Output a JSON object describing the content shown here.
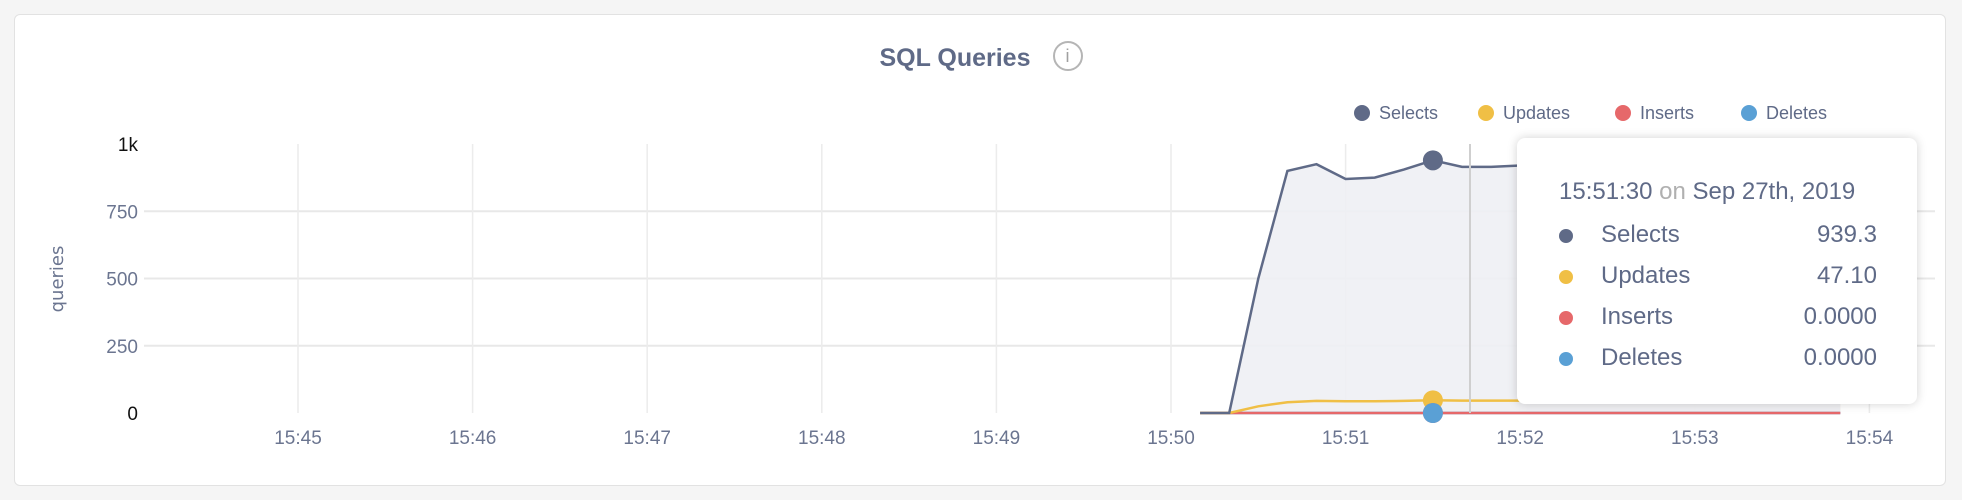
{
  "chart_data": {
    "type": "area",
    "title": "SQL Queries",
    "ylabel": "queries",
    "ylim": [
      0,
      1000
    ],
    "yticks": [
      "0",
      "250",
      "500",
      "750",
      "1k"
    ],
    "ytick_values": [
      0,
      250,
      500,
      750,
      1000
    ],
    "xlim": [
      "15:44:00",
      "15:54:00"
    ],
    "xticks": [
      "15:45",
      "15:46",
      "15:47",
      "15:48",
      "15:49",
      "15:50",
      "15:51",
      "15:52",
      "15:53",
      "15:54"
    ],
    "grid": true,
    "legend_position": "top-right",
    "x": [
      "15:50:10",
      "15:50:20",
      "15:50:30",
      "15:50:40",
      "15:50:50",
      "15:51:00",
      "15:51:10",
      "15:51:20",
      "15:51:30",
      "15:51:40",
      "15:51:50",
      "15:52:00",
      "15:52:10",
      "15:52:20",
      "15:52:30",
      "15:52:40",
      "15:52:50",
      "15:53:00",
      "15:53:10",
      "15:53:20",
      "15:53:30",
      "15:53:40",
      "15:53:50"
    ],
    "series": [
      {
        "name": "Selects",
        "color": "#5f6a87",
        "values": [
          0,
          0,
          500,
          900,
          925,
          870,
          875,
          905,
          939.3,
          915,
          915,
          920,
          920,
          920,
          920,
          920,
          920,
          920,
          920,
          920,
          920,
          920,
          920
        ]
      },
      {
        "name": "Updates",
        "color": "#f0bf45",
        "values": [
          0,
          0,
          25,
          40,
          45,
          44,
          44,
          45,
          47.1,
          46,
          46,
          46,
          46,
          46,
          46,
          46,
          46,
          46,
          46,
          46,
          46,
          46,
          46
        ]
      },
      {
        "name": "Inserts",
        "color": "#e6686a",
        "values": [
          0,
          0,
          0,
          0,
          0,
          0,
          0,
          0,
          0,
          0,
          0,
          0,
          0,
          0,
          0,
          0,
          0,
          0,
          0,
          0,
          0,
          0,
          0
        ]
      },
      {
        "name": "Deletes",
        "color": "#5aa0d5",
        "values": [
          0,
          0,
          0,
          0,
          0,
          0,
          0,
          0,
          0,
          0,
          0,
          0,
          0,
          0,
          0,
          0,
          0,
          0,
          0,
          0,
          0,
          0,
          0
        ]
      }
    ],
    "hover_index": 8,
    "tooltip": {
      "time": "15:51:30",
      "on": "on",
      "date": "Sep 27th, 2019",
      "rows": [
        {
          "name": "Selects",
          "value": "939.3"
        },
        {
          "name": "Updates",
          "value": "47.10"
        },
        {
          "name": "Inserts",
          "value": "0.0000"
        },
        {
          "name": "Deletes",
          "value": "0.0000"
        }
      ]
    }
  }
}
